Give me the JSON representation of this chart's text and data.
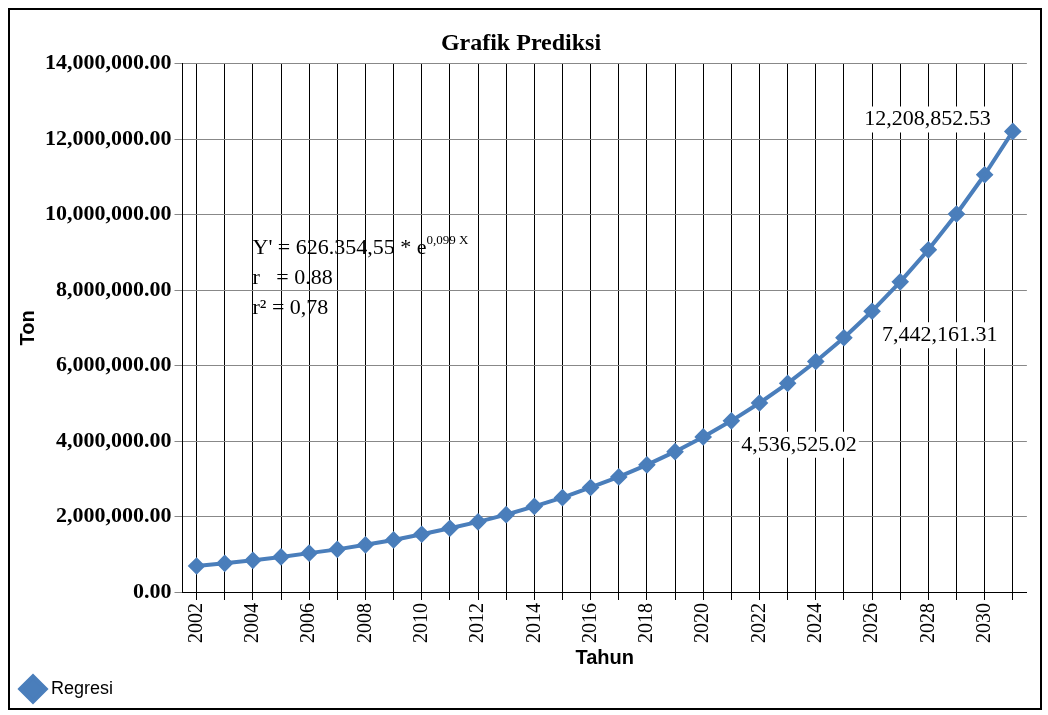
{
  "chart_data": {
    "type": "line",
    "title": "Grafik Prediksi",
    "xlabel": "Tahun",
    "ylabel": "Ton",
    "categories": [
      "2002",
      null,
      "2004",
      null,
      "2006",
      null,
      "2008",
      null,
      "2010",
      null,
      "2012",
      null,
      "2014",
      null,
      "2016",
      null,
      "2018",
      null,
      "2020",
      null,
      "2022",
      null,
      "2024",
      null,
      "2026",
      null,
      "2028",
      null,
      "2030",
      null
    ],
    "series": [
      {
        "name": "Regresi",
        "color": "#4a7ebb",
        "values": [
          690000,
          760000,
          840000,
          930000,
          1030000,
          1130000,
          1250000,
          1380000,
          1530000,
          1690000,
          1860000,
          2050000,
          2270000,
          2500000,
          2770000,
          3050000,
          3370000,
          3720000,
          4110000,
          4536525.02,
          5010000,
          5530000,
          6110000,
          6740000,
          7442161.31,
          8220000,
          9070000,
          10020000,
          11060000,
          12208852.53
        ],
        "value_labels": [
          null,
          null,
          null,
          null,
          null,
          null,
          null,
          null,
          null,
          null,
          null,
          null,
          null,
          null,
          null,
          null,
          null,
          null,
          null,
          "4,536,525.02",
          null,
          null,
          null,
          null,
          "7,442,161.31",
          null,
          null,
          null,
          null,
          "12,208,852.53"
        ]
      }
    ],
    "ylim": [
      0,
      14000000
    ],
    "yticks": [
      {
        "value": 0,
        "label": "0.00"
      },
      {
        "value": 2000000,
        "label": "2,000,000.00"
      },
      {
        "value": 4000000,
        "label": "4,000,000.00"
      },
      {
        "value": 6000000,
        "label": "6,000,000.00"
      },
      {
        "value": 8000000,
        "label": "8,000,000.00"
      },
      {
        "value": 10000000,
        "label": "10,000,000.00"
      },
      {
        "value": 12000000,
        "label": "12,000,000.00"
      },
      {
        "value": 14000000,
        "label": "14,000,000.00"
      }
    ],
    "grid": true,
    "legend": "bottom left",
    "marker": "diamond",
    "line_style": "solid",
    "annotations": [
      "Y' = 626.354,55 * e$^{0,099 X}$",
      "r   = 0.88",
      "r² = 0,78"
    ]
  }
}
